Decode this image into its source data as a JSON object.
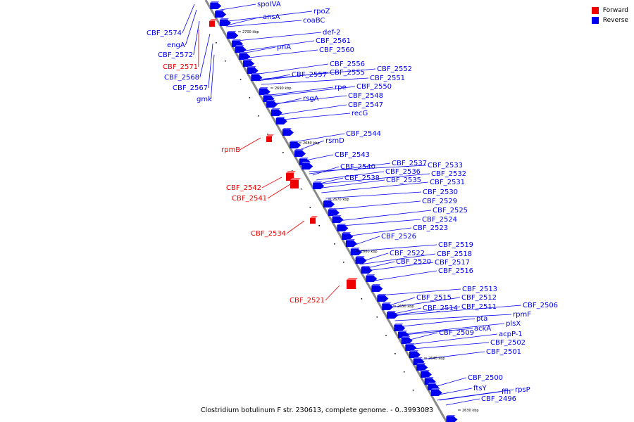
{
  "legend": [
    {
      "label": "Forward",
      "color": "#ee0000"
    },
    {
      "label": "Reverse",
      "color": "#0000ee"
    }
  ],
  "caption": "Clostridium botulinum F str. 230613, complete genome. - 0..3993083",
  "colors": {
    "forward": "#ee0000",
    "reverse": "#0000ee",
    "backbone": "#8a8a8a"
  },
  "tick_labels": [
    "2700 kbp",
    "2690 kbp",
    "2680 kbp",
    "2670 kbp",
    "2660 kbp",
    "2650 kbp",
    "2640 kbp",
    "2630 kbp"
  ],
  "left_labels": [
    {
      "name": "CBF_2574",
      "strand": "reverse"
    },
    {
      "name": "engA",
      "strand": "reverse"
    },
    {
      "name": "CBF_2572",
      "strand": "reverse"
    },
    {
      "name": "CBF_2571",
      "strand": "forward"
    },
    {
      "name": "CBF_2568",
      "strand": "reverse"
    },
    {
      "name": "CBF_2567",
      "strand": "reverse"
    },
    {
      "name": "gmk",
      "strand": "reverse"
    },
    {
      "name": "rpmB",
      "strand": "forward"
    },
    {
      "name": "CBF_2542",
      "strand": "forward"
    },
    {
      "name": "CBF_2541",
      "strand": "forward"
    },
    {
      "name": "CBF_2534",
      "strand": "forward"
    },
    {
      "name": "CBF_2521",
      "strand": "forward"
    }
  ],
  "right_labels": [
    "spoIVA",
    "ansA",
    "rpoZ",
    "coaBC",
    "def-2",
    "CBF_2561",
    "priA",
    "CBF_2560",
    "CBF_2556",
    "CBF_2557",
    "CBF_2555",
    "CBF_2552",
    "CBF_2551",
    "rpe",
    "CBF_2550",
    "rsgA",
    "CBF_2548",
    "CBF_2547",
    "recG",
    "CBF_2544",
    "rsmD",
    "CBF_2543",
    "CBF_2540",
    "CBF_2537",
    "CBF_2533",
    "CBF_2536",
    "CBF_2532",
    "CBF_2538",
    "CBF_2535",
    "CBF_2531",
    "CBF_2530",
    "CBF_2529",
    "CBF_2525",
    "CBF_2524",
    "CBF_2523",
    "CBF_2526",
    "CBF_2519",
    "CBF_2522",
    "CBF_2518",
    "CBF_2520",
    "CBF_2517",
    "CBF_2516",
    "CBF_2513",
    "CBF_2515",
    "CBF_2512",
    "CBF_2514",
    "CBF_2511",
    "CBF_2506",
    "rpmF",
    "pta",
    "plsX",
    "ackA",
    "CBF_2509",
    "acpP-1",
    "CBF_2502",
    "CBF_2501",
    "CBF_2500",
    "ftsY",
    "ffh",
    "rpsP",
    "CBF_2496"
  ]
}
